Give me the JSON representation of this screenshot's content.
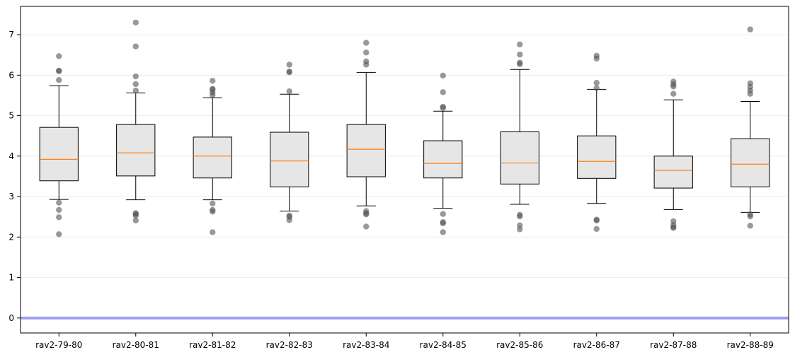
{
  "chart_data": {
    "type": "boxplot",
    "categories": [
      "rav2-79-80",
      "rav2-80-81",
      "rav2-81-82",
      "rav2-82-83",
      "rav2-83-84",
      "rav2-84-85",
      "rav2-85-86",
      "rav2-86-87",
      "rav2-87-88",
      "rav2-88-89"
    ],
    "boxes": [
      {
        "whislo": 2.93,
        "q1": 3.39,
        "med": 3.92,
        "q3": 4.71,
        "whishi": 5.74,
        "fliers": [
          2.85,
          2.67,
          2.49,
          2.07,
          5.88,
          6.1,
          6.11,
          6.47
        ]
      },
      {
        "whislo": 2.92,
        "q1": 3.51,
        "med": 4.08,
        "q3": 4.78,
        "whishi": 5.56,
        "fliers": [
          2.53,
          2.57,
          2.59,
          2.41,
          5.62,
          5.78,
          5.97,
          6.71,
          7.3
        ]
      },
      {
        "whislo": 2.92,
        "q1": 3.46,
        "med": 4.0,
        "q3": 4.47,
        "whishi": 5.44,
        "fliers": [
          2.83,
          2.67,
          2.63,
          2.12,
          5.51,
          5.57,
          5.65,
          5.66,
          5.86
        ]
      },
      {
        "whislo": 2.64,
        "q1": 3.24,
        "med": 3.88,
        "q3": 4.59,
        "whishi": 5.53,
        "fliers": [
          2.53,
          2.5,
          2.42,
          5.6,
          6.07,
          6.09,
          6.26
        ]
      },
      {
        "whislo": 2.77,
        "q1": 3.49,
        "med": 4.17,
        "q3": 4.78,
        "whishi": 6.07,
        "fliers": [
          2.64,
          2.59,
          2.56,
          2.26,
          6.26,
          6.34,
          6.56,
          6.8
        ]
      },
      {
        "whislo": 2.71,
        "q1": 3.46,
        "med": 3.82,
        "q3": 4.38,
        "whishi": 5.11,
        "fliers": [
          2.57,
          2.37,
          2.34,
          2.12,
          5.19,
          5.22,
          5.58,
          5.99
        ]
      },
      {
        "whislo": 2.81,
        "q1": 3.31,
        "med": 3.83,
        "q3": 4.6,
        "whishi": 6.14,
        "fliers": [
          2.55,
          2.51,
          2.29,
          2.19,
          6.27,
          6.31,
          6.51,
          6.76
        ]
      },
      {
        "whislo": 2.83,
        "q1": 3.45,
        "med": 3.87,
        "q3": 4.5,
        "whishi": 5.65,
        "fliers": [
          2.43,
          2.41,
          2.2,
          5.68,
          5.81,
          6.41,
          6.48
        ]
      },
      {
        "whislo": 2.68,
        "q1": 3.21,
        "med": 3.65,
        "q3": 4.0,
        "whishi": 5.39,
        "fliers": [
          2.39,
          2.3,
          2.24,
          2.23,
          5.54,
          5.72,
          5.77,
          5.84
        ]
      },
      {
        "whislo": 2.61,
        "q1": 3.24,
        "med": 3.8,
        "q3": 4.43,
        "whishi": 5.35,
        "fliers": [
          2.56,
          2.51,
          2.28,
          5.54,
          5.62,
          5.71,
          5.8,
          7.13
        ]
      }
    ],
    "reference_line": {
      "y": 0,
      "color": "#a0a0f0"
    },
    "yticks": [
      0,
      1,
      2,
      3,
      4,
      5,
      6,
      7
    ],
    "ylim": [
      -0.37,
      7.7
    ],
    "grid": "horizontal",
    "title": "",
    "xlabel": "",
    "ylabel": "",
    "colors": {
      "box_fill": "#e6e6e6",
      "median": "#ff7f0e",
      "flier": "#555555",
      "grid": "#ececec"
    }
  }
}
